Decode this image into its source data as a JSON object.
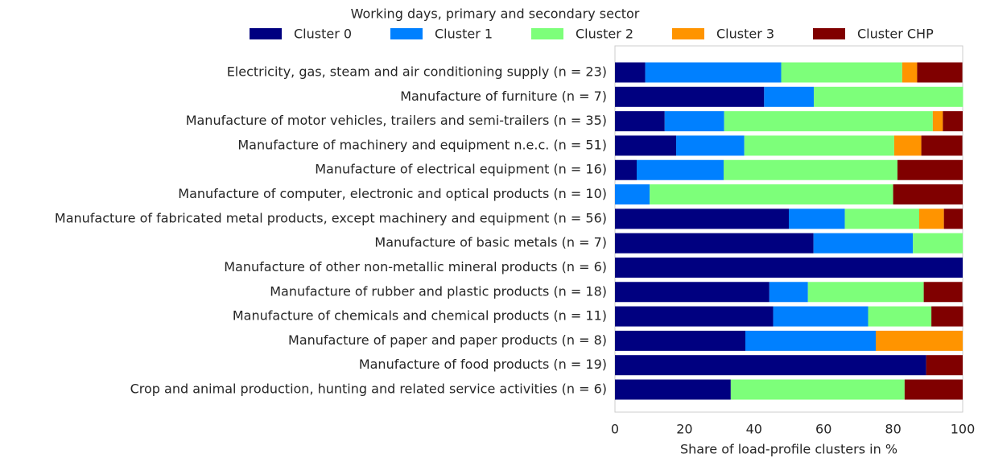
{
  "chart_data": {
    "type": "stacked-barh",
    "title": "Working days, primary and secondary sector",
    "x_label": "Share of load-profile clusters in %",
    "categories": [
      "Electricity, gas, steam and air conditioning supply (n = 23)",
      "Manufacture of furniture (n = 7)",
      "Manufacture of motor vehicles, trailers and semi-trailers (n = 35)",
      "Manufacture of machinery and equipment n.e.c. (n = 51)",
      "Manufacture of electrical equipment (n = 16)",
      "Manufacture of computer, electronic and optical products (n = 10)",
      "Manufacture of fabricated metal products, except machinery and equipment (n = 56)",
      "Manufacture of basic metals (n = 7)",
      "Manufacture of other non-metallic mineral products (n = 6)",
      "Manufacture of rubber and plastic products (n = 18)",
      "Manufacture of chemicals and chemical products (n = 11)",
      "Manufacture of paper and paper products (n = 8)",
      "Manufacture of food products (n = 19)",
      "Crop and animal production, hunting and related service activities (n = 6)"
    ],
    "series": [
      {
        "name": "Cluster 0",
        "color": "#000080",
        "values": [
          8.7,
          42.9,
          14.3,
          17.6,
          6.25,
          0,
          50.0,
          57.1,
          100,
          44.4,
          45.5,
          37.5,
          89.5,
          33.3
        ]
      },
      {
        "name": "Cluster 1",
        "color": "#0080ff",
        "values": [
          39.1,
          14.3,
          17.1,
          19.6,
          25.0,
          10.0,
          16.1,
          28.6,
          0,
          11.1,
          27.3,
          37.5,
          0,
          0
        ]
      },
      {
        "name": "Cluster 2",
        "color": "#7dff7a",
        "values": [
          34.8,
          42.9,
          60.0,
          43.1,
          50.0,
          70.0,
          21.4,
          14.3,
          0,
          33.3,
          18.2,
          0,
          0,
          50.0
        ]
      },
      {
        "name": "Cluster 3",
        "color": "#ff9400",
        "values": [
          4.3,
          0,
          2.9,
          7.8,
          0,
          0,
          7.1,
          0,
          0,
          0,
          0,
          25.0,
          0,
          0
        ]
      },
      {
        "name": "Cluster CHP",
        "color": "#800000",
        "values": [
          13.0,
          0,
          5.7,
          11.8,
          18.75,
          20.0,
          5.4,
          0,
          0,
          11.1,
          9.1,
          0,
          10.5,
          16.7
        ]
      }
    ],
    "xlim": [
      0,
      100
    ],
    "xticks": [
      0,
      20,
      40,
      60,
      80,
      100
    ],
    "grid": false
  }
}
